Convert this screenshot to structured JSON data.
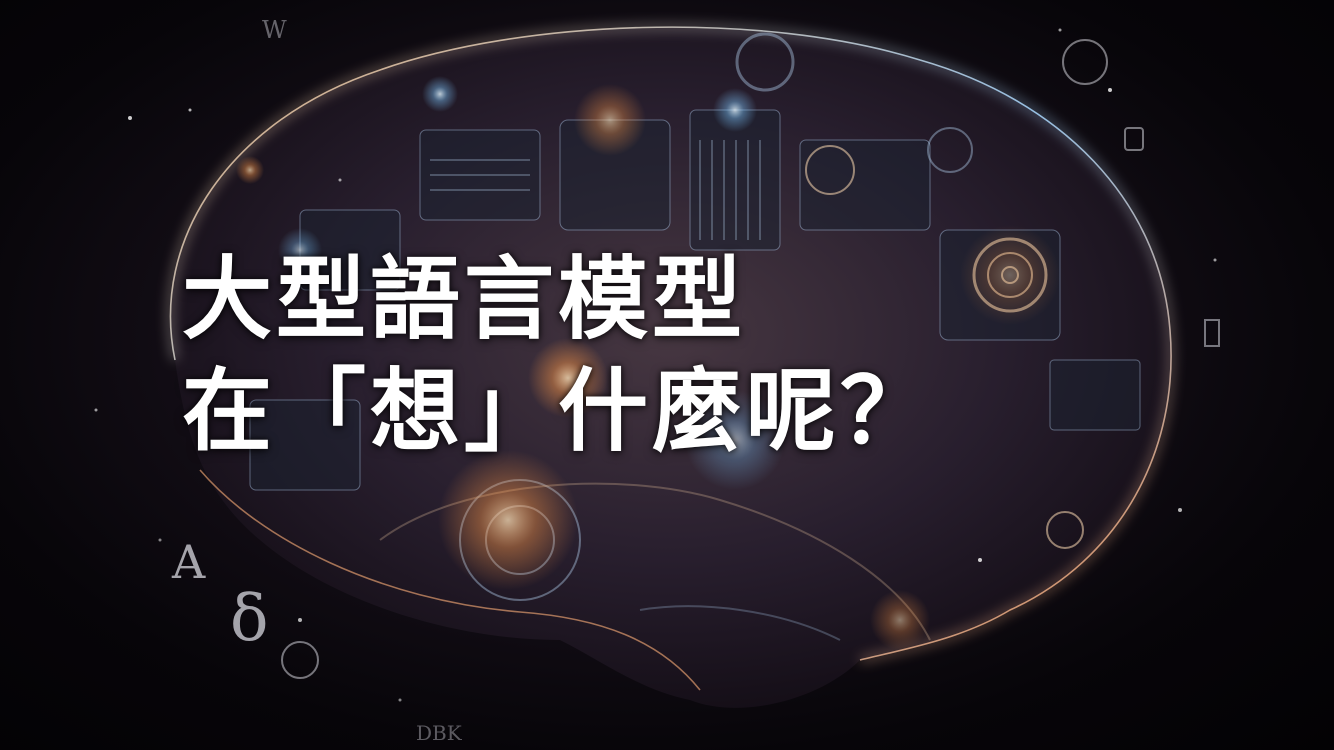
{
  "slide": {
    "title_line_1": "大型語言模型",
    "title_line_2": "在「想」什麼呢？"
  },
  "background": {
    "image": "mechanical-brain-illustration",
    "glow_colors": [
      "#ffb36b",
      "#8fd0ff",
      "#c98a5a"
    ],
    "floating_symbols": [
      "A",
      "δ",
      "W",
      "DBK"
    ]
  }
}
